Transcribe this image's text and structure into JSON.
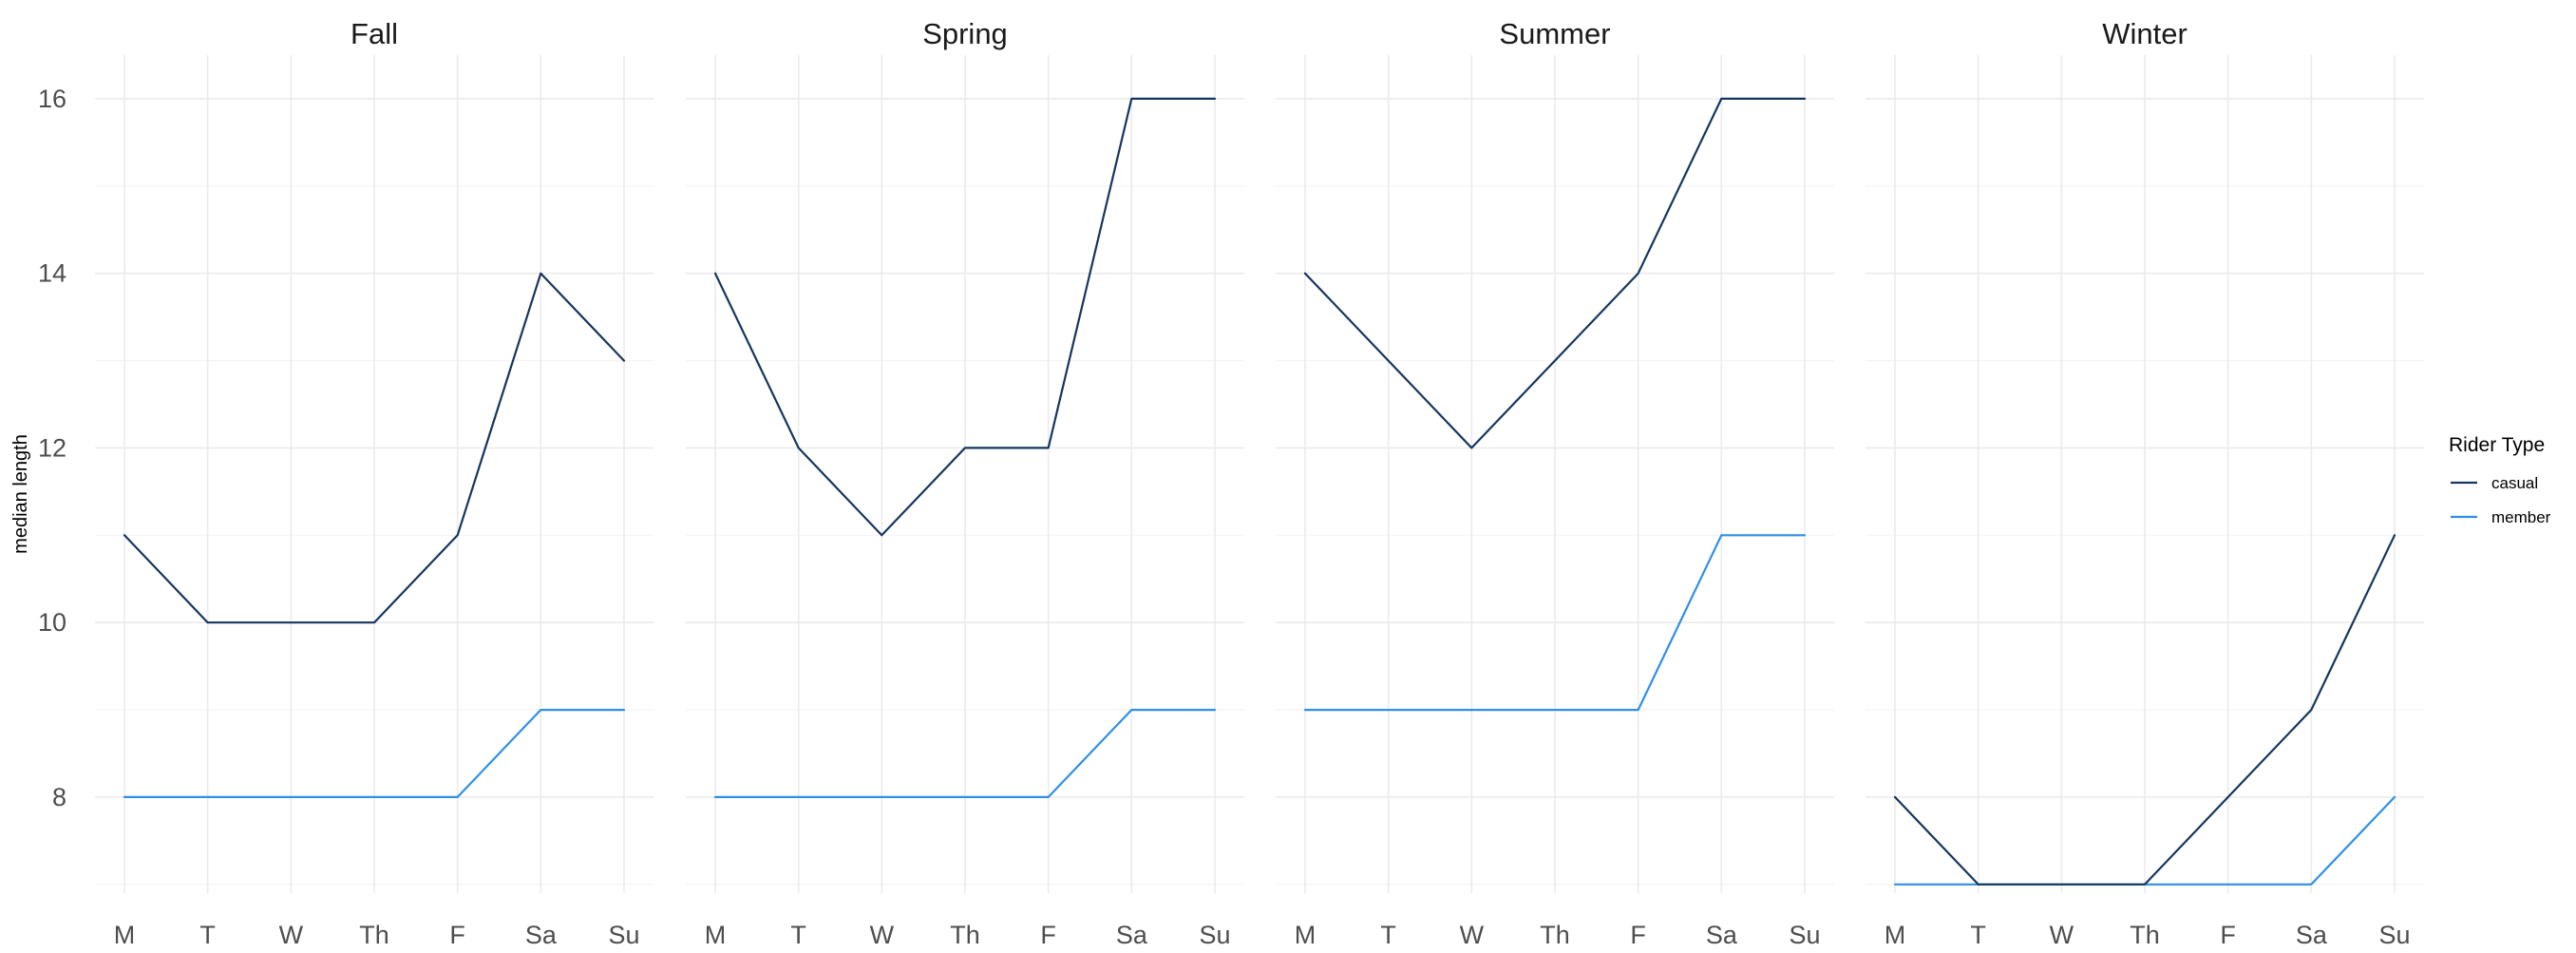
{
  "chart_data": {
    "type": "line",
    "facet_by": "season",
    "ylabel": "median length",
    "xlabel": "",
    "x_categories": [
      "M",
      "T",
      "W",
      "Th",
      "F",
      "Sa",
      "Su"
    ],
    "y_ticks": [
      8,
      10,
      12,
      14,
      16
    ],
    "ylim": [
      6.9,
      16.5
    ],
    "grid": true,
    "legend": {
      "title": "Rider Type",
      "placement": "right",
      "entries": [
        {
          "name": "casual",
          "color": "#15365f"
        },
        {
          "name": "member",
          "color": "#2f8fe6"
        }
      ]
    },
    "panels": [
      {
        "title": "Fall",
        "series": [
          {
            "name": "casual",
            "values": [
              11,
              10,
              10,
              10,
              11,
              14,
              13
            ]
          },
          {
            "name": "member",
            "values": [
              8,
              8,
              8,
              8,
              8,
              9,
              9
            ]
          }
        ]
      },
      {
        "title": "Spring",
        "series": [
          {
            "name": "casual",
            "values": [
              14,
              12,
              11,
              12,
              12,
              16,
              16
            ]
          },
          {
            "name": "member",
            "values": [
              8,
              8,
              8,
              8,
              8,
              9,
              9
            ]
          }
        ]
      },
      {
        "title": "Summer",
        "series": [
          {
            "name": "casual",
            "values": [
              14,
              13,
              12,
              13,
              14,
              16,
              16
            ]
          },
          {
            "name": "member",
            "values": [
              9,
              9,
              9,
              9,
              9,
              11,
              11
            ]
          }
        ]
      },
      {
        "title": "Winter",
        "series": [
          {
            "name": "casual",
            "values": [
              8,
              7,
              7,
              7,
              8,
              9,
              11
            ]
          },
          {
            "name": "member",
            "values": [
              7,
              7,
              7,
              7,
              7,
              7,
              8
            ]
          }
        ]
      }
    ]
  }
}
